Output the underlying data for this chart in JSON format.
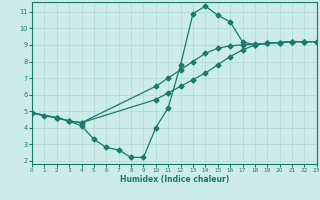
{
  "line1_x": [
    0,
    1,
    2,
    3,
    4,
    10,
    11,
    12,
    13,
    14,
    15,
    16,
    17,
    18,
    19,
    20,
    21,
    22,
    23
  ],
  "line1_y": [
    4.9,
    4.7,
    4.6,
    4.4,
    4.3,
    5.7,
    6.1,
    6.5,
    6.9,
    7.3,
    7.8,
    8.3,
    8.7,
    9.0,
    9.1,
    9.15,
    9.2,
    9.2,
    9.2
  ],
  "line2_x": [
    0,
    2,
    3,
    4,
    5,
    6,
    7,
    8,
    9,
    10,
    11,
    12,
    13,
    14,
    15,
    16,
    17,
    18,
    19,
    20,
    21,
    22,
    23
  ],
  "line2_y": [
    4.9,
    4.6,
    4.4,
    4.1,
    3.3,
    2.8,
    2.65,
    2.2,
    2.2,
    4.0,
    5.2,
    7.8,
    10.9,
    11.35,
    10.8,
    10.4,
    9.2,
    9.0,
    9.1,
    9.15,
    9.2,
    9.2,
    9.2
  ],
  "line3_x": [
    0,
    2,
    3,
    4,
    10,
    11,
    12,
    13,
    14,
    15,
    16,
    17,
    18,
    19,
    20,
    21,
    22,
    23
  ],
  "line3_y": [
    4.9,
    4.6,
    4.4,
    4.3,
    6.5,
    7.0,
    7.5,
    8.0,
    8.5,
    8.8,
    8.95,
    9.0,
    9.05,
    9.1,
    9.15,
    9.2,
    9.2,
    9.2
  ],
  "color": "#1a7a6e",
  "bg_color": "#ccecea",
  "grid_color": "#afd8d5",
  "xlabel": "Humidex (Indice chaleur)",
  "xlim": [
    0,
    23
  ],
  "ylim": [
    1.8,
    11.6
  ],
  "xticks": [
    0,
    1,
    2,
    3,
    4,
    5,
    6,
    7,
    8,
    9,
    10,
    11,
    12,
    13,
    14,
    15,
    16,
    17,
    18,
    19,
    20,
    21,
    22,
    23
  ],
  "yticks": [
    2,
    3,
    4,
    5,
    6,
    7,
    8,
    9,
    10,
    11
  ],
  "markersize": 2.5,
  "linewidth": 0.9
}
